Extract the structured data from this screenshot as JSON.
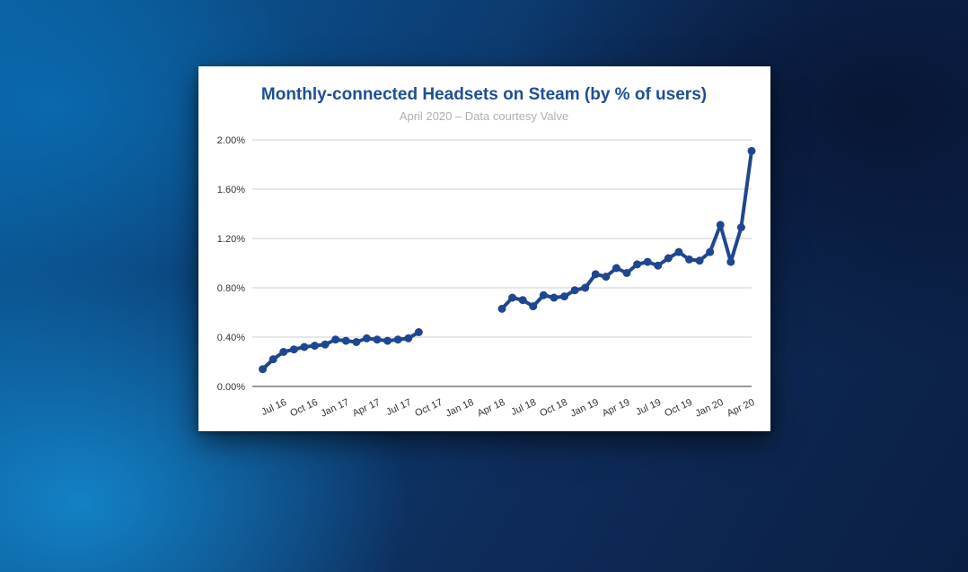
{
  "chart_data": {
    "type": "line",
    "title": "Monthly-connected Headsets on Steam (by % of users)",
    "subtitle": "April 2020 – Data courtesy Valve",
    "xlabel": "",
    "ylabel": "",
    "ylim": [
      0,
      2.0
    ],
    "xlim": [
      "2016-04",
      "2020-04"
    ],
    "y_ticks": [
      "0.00%",
      "0.40%",
      "0.80%",
      "1.20%",
      "1.60%",
      "2.00%"
    ],
    "y_tick_values": [
      0,
      0.4,
      0.8,
      1.2,
      1.6,
      2.0
    ],
    "x_ticks": [
      "Jul 16",
      "Oct 16",
      "Jan 17",
      "Apr 17",
      "Jul 17",
      "Oct 17",
      "Jan 18",
      "Apr 18",
      "Jul 18",
      "Oct 18",
      "Jan 19",
      "Apr 19",
      "Jul 19",
      "Oct 19",
      "Jan 20",
      "Apr 20"
    ],
    "x_tick_dates": [
      "2016-07",
      "2016-10",
      "2017-01",
      "2017-04",
      "2017-07",
      "2017-10",
      "2018-01",
      "2018-04",
      "2018-07",
      "2018-10",
      "2019-01",
      "2019-04",
      "2019-07",
      "2019-10",
      "2020-01",
      "2020-04"
    ],
    "grid": true,
    "color": "#1f4690",
    "segments": [
      {
        "x": [
          "2016-05",
          "2016-06",
          "2016-07",
          "2016-08",
          "2016-09",
          "2016-10",
          "2016-11",
          "2016-12",
          "2017-01",
          "2017-02",
          "2017-03",
          "2017-04",
          "2017-05",
          "2017-06",
          "2017-07",
          "2017-08"
        ],
        "y": [
          0.14,
          0.22,
          0.28,
          0.3,
          0.32,
          0.33,
          0.34,
          0.38,
          0.37,
          0.36,
          0.39,
          0.38,
          0.37,
          0.38,
          0.39,
          0.44
        ]
      },
      {
        "x": [
          "2018-04",
          "2018-05",
          "2018-06",
          "2018-07",
          "2018-08",
          "2018-09",
          "2018-10",
          "2018-11",
          "2018-12",
          "2019-01",
          "2019-02",
          "2019-03",
          "2019-04",
          "2019-05",
          "2019-06",
          "2019-07",
          "2019-08",
          "2019-09",
          "2019-10",
          "2019-11",
          "2019-12",
          "2020-01",
          "2020-02",
          "2020-03",
          "2020-04"
        ],
        "y": [
          0.63,
          0.72,
          0.7,
          0.65,
          0.74,
          0.72,
          0.73,
          0.78,
          0.8,
          0.91,
          0.89,
          0.96,
          0.92,
          0.99,
          1.01,
          0.98,
          1.04,
          1.09,
          1.03,
          1.02,
          1.09,
          1.31,
          1.01,
          1.29,
          1.91
        ]
      }
    ]
  }
}
